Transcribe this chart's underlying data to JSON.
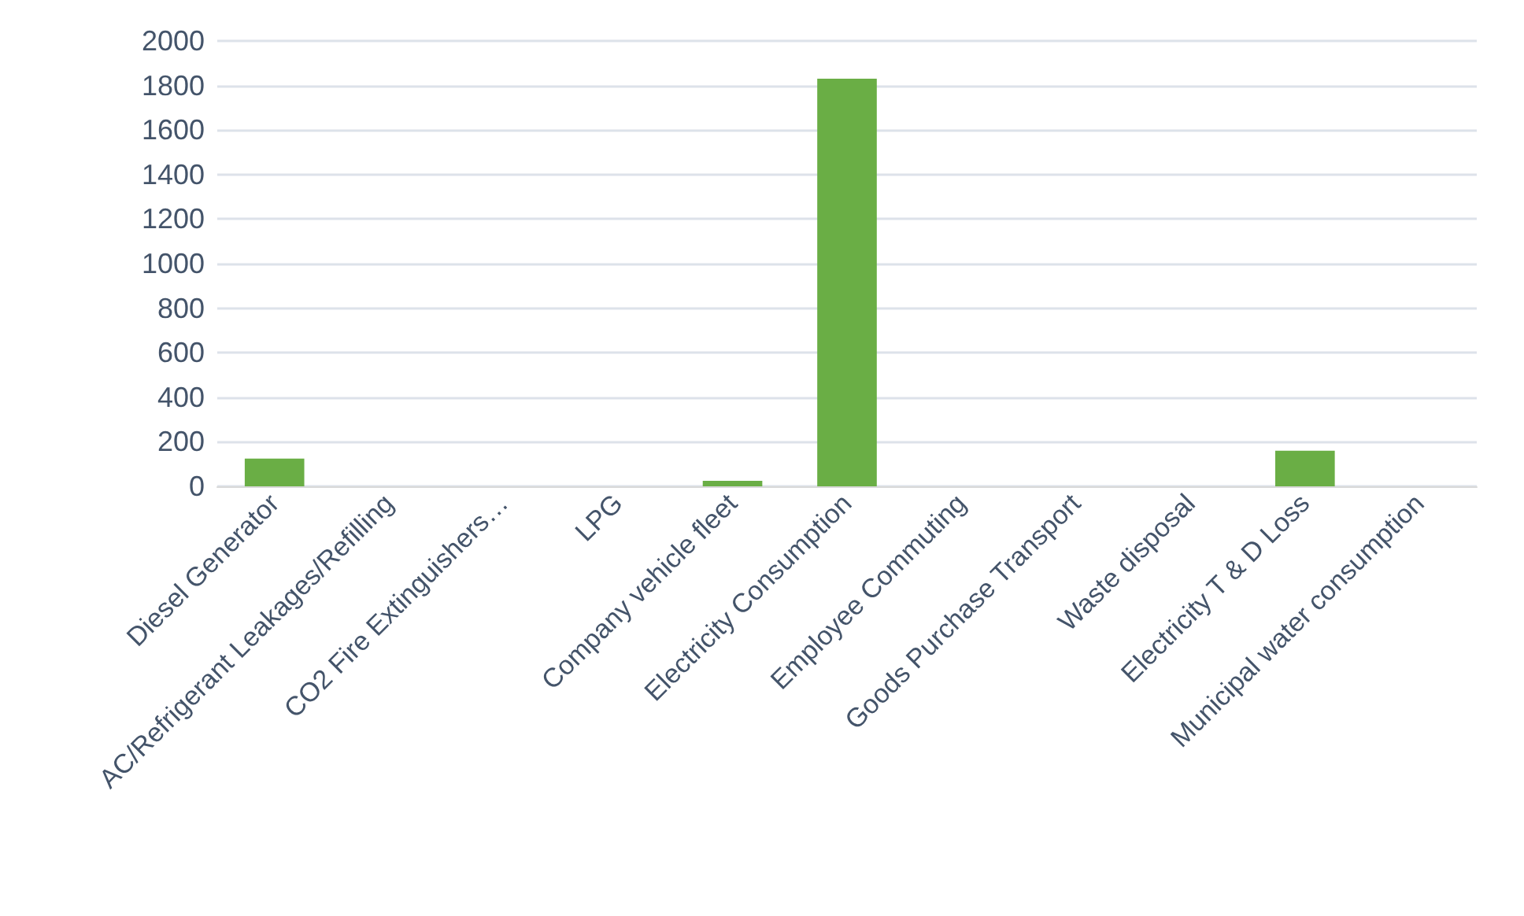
{
  "chart_data": {
    "type": "bar",
    "categories": [
      "Diesel Generator",
      "AC/Refrigerant Leakages/Refilling",
      "CO2 Fire Extinguishers…",
      "LPG",
      "Company vehicle fleet",
      "Electricity Consumption",
      "Employee Commuting",
      "Goods Purchase Transport",
      "Waste disposal",
      "Electricity T & D Loss",
      "Municipal water consumption"
    ],
    "values": [
      125,
      0,
      0,
      0,
      25,
      1830,
      0,
      0,
      0,
      160,
      0
    ],
    "color": "#6aae45",
    "ylim": [
      0,
      2000
    ],
    "yticks": [
      0,
      200,
      400,
      600,
      800,
      1000,
      1200,
      1400,
      1600,
      1800,
      2000
    ],
    "grid": "y"
  }
}
